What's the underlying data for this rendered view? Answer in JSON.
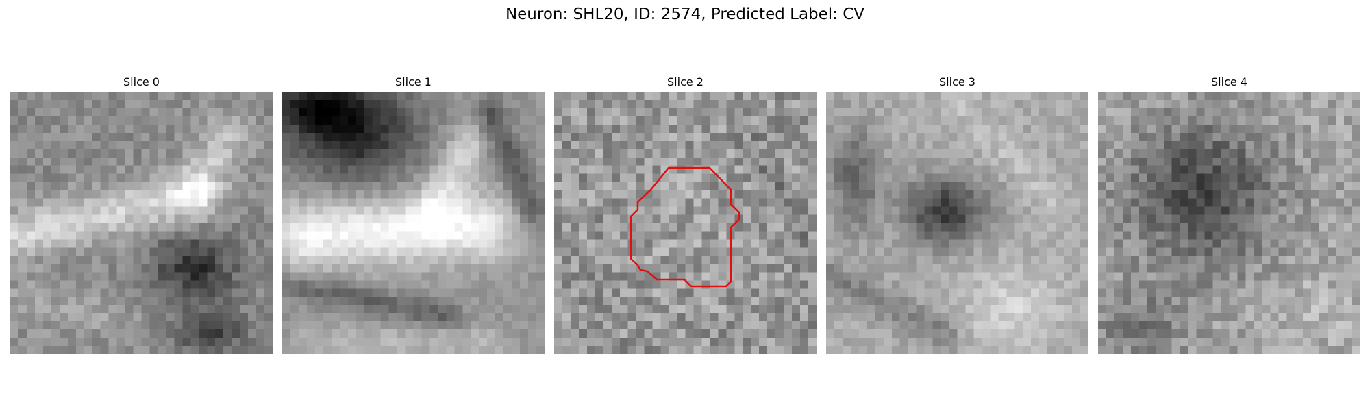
{
  "figure": {
    "title": "Neuron: SHL20, ID: 2574, Predicted Label: CV"
  },
  "slices": [
    {
      "title": "Slice 0"
    },
    {
      "title": "Slice 1"
    },
    {
      "title": "Slice 2"
    },
    {
      "title": "Slice 3"
    },
    {
      "title": "Slice 4"
    }
  ],
  "colors": {
    "contour": "#e01010",
    "background": "#ffffff"
  },
  "colormap": "gray",
  "grid_size": 32
}
